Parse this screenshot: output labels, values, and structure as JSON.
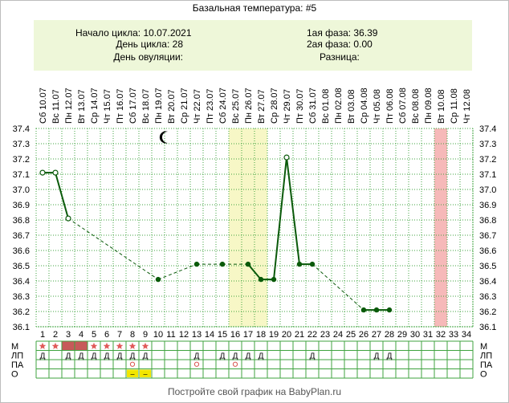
{
  "title": "Базальная температура: #5",
  "info": {
    "cycle_start": "Начало цикла: 10.07.2021",
    "cycle_day": "День цикла: 28",
    "ovulation_day": "День овуляции:",
    "phase1": "1ая фаза: 36.39",
    "phase2": "2ая фаза: 0.00",
    "difference": "Разница:"
  },
  "footer": "Постройте свой график на BabyPlan.ru",
  "row_labels": [
    "М",
    "ЛП",
    "ПА",
    "О"
  ],
  "colors": {
    "line": "#0a5a0a",
    "grid": "#3fa33f",
    "yellow_band": "#f7f7c6",
    "pink_band": "#f6b9b9",
    "m_fill": "#c75a5a",
    "star": "#e05a5a",
    "ring": "#d9534f",
    "o_fill": "#f2e600"
  },
  "chart_data": {
    "type": "line",
    "title": "Базальная температура: #5",
    "day_numbers": [
      1,
      2,
      3,
      4,
      5,
      6,
      7,
      8,
      9,
      10,
      11,
      12,
      13,
      14,
      15,
      16,
      17,
      18,
      19,
      20,
      21,
      22,
      23,
      24,
      25,
      26,
      27,
      28,
      29,
      30,
      31,
      32,
      33,
      34
    ],
    "date_labels": [
      "Сб 10.07",
      "Вс 11.07",
      "Пн 12.07",
      "Вт 13.07",
      "Ср 14.07",
      "Чт 15.07",
      "Пт 16.07",
      "Сб 17.07",
      "Вс 18.07",
      "Пн 19.07",
      "Вт 20.07",
      "Ср 21.07",
      "Чт 22.07",
      "Пт 23.07",
      "Сб 24.07",
      "Вс 25.07",
      "Пн 26.07",
      "Вт 27.07",
      "Ср 28.07",
      "Чт 29.07",
      "Пт 30.07",
      "Сб 31.07",
      "Вс 01.08",
      "Пн 02.08",
      "Вт 03.08",
      "Ср 04.08",
      "Чт 05.08",
      "Пт 06.08",
      "Сб 07.08",
      "Вс 08.08",
      "Пн 09.08",
      "Вт 10.08",
      "Ср 11.08",
      "Чт 12.08"
    ],
    "y_ticks": [
      "37.4",
      "37.3",
      "37.2",
      "37.1",
      "37.0",
      "36.9",
      "36.8",
      "36.7",
      "36.6",
      "36.5",
      "36.4",
      "36.3",
      "36.2",
      "36.1"
    ],
    "ylim": [
      36.1,
      37.4
    ],
    "points": [
      {
        "day": 1,
        "temp": 37.11,
        "style": "open"
      },
      {
        "day": 2,
        "temp": 37.11,
        "style": "open"
      },
      {
        "day": 3,
        "temp": 36.81,
        "style": "open"
      },
      {
        "day": 10,
        "temp": 36.41,
        "style": "filled"
      },
      {
        "day": 13,
        "temp": 36.51,
        "style": "filled"
      },
      {
        "day": 15,
        "temp": 36.51,
        "style": "filled"
      },
      {
        "day": 17,
        "temp": 36.51,
        "style": "filled"
      },
      {
        "day": 18,
        "temp": 36.41,
        "style": "filled"
      },
      {
        "day": 19,
        "temp": 36.41,
        "style": "filled"
      },
      {
        "day": 20,
        "temp": 37.21,
        "style": "open"
      },
      {
        "day": 21,
        "temp": 36.51,
        "style": "filled"
      },
      {
        "day": 22,
        "temp": 36.51,
        "style": "filled"
      },
      {
        "day": 26,
        "temp": 36.21,
        "style": "filled"
      },
      {
        "day": 27,
        "temp": 36.21,
        "style": "filled"
      },
      {
        "day": 28,
        "temp": 36.21,
        "style": "filled"
      }
    ],
    "segments": [
      {
        "from": 1,
        "to": 2,
        "dashed": false
      },
      {
        "from": 2,
        "to": 3,
        "dashed": false
      },
      {
        "from": 3,
        "to": 10,
        "dashed": true
      },
      {
        "from": 10,
        "to": 13,
        "dashed": true
      },
      {
        "from": 13,
        "to": 15,
        "dashed": true
      },
      {
        "from": 15,
        "to": 17,
        "dashed": true
      },
      {
        "from": 17,
        "to": 18,
        "dashed": false
      },
      {
        "from": 18,
        "to": 19,
        "dashed": false
      },
      {
        "from": 19,
        "to": 20,
        "dashed": false
      },
      {
        "from": 20,
        "to": 21,
        "dashed": false
      },
      {
        "from": 21,
        "to": 22,
        "dashed": false
      },
      {
        "from": 22,
        "to": 26,
        "dashed": true
      },
      {
        "from": 26,
        "to": 27,
        "dashed": false
      },
      {
        "from": 27,
        "to": 28,
        "dashed": false
      }
    ],
    "highlight_days": {
      "yellow": [
        16,
        17,
        18
      ],
      "pink": [
        32
      ]
    },
    "moon_day": 10,
    "rows": {
      "M": {
        "filled": [
          3,
          4
        ],
        "stars": [
          1,
          2,
          5,
          6,
          7,
          8,
          9
        ]
      },
      "LP": {
        "marks": [
          1,
          3,
          4,
          5,
          6,
          7,
          8,
          9,
          13,
          15,
          16,
          17,
          18,
          22,
          27,
          28
        ],
        "mark": "Д"
      },
      "PA": {
        "rings": [
          8,
          13,
          16
        ]
      },
      "O": {
        "yellow": [
          8,
          9
        ],
        "mark": "–"
      }
    }
  }
}
